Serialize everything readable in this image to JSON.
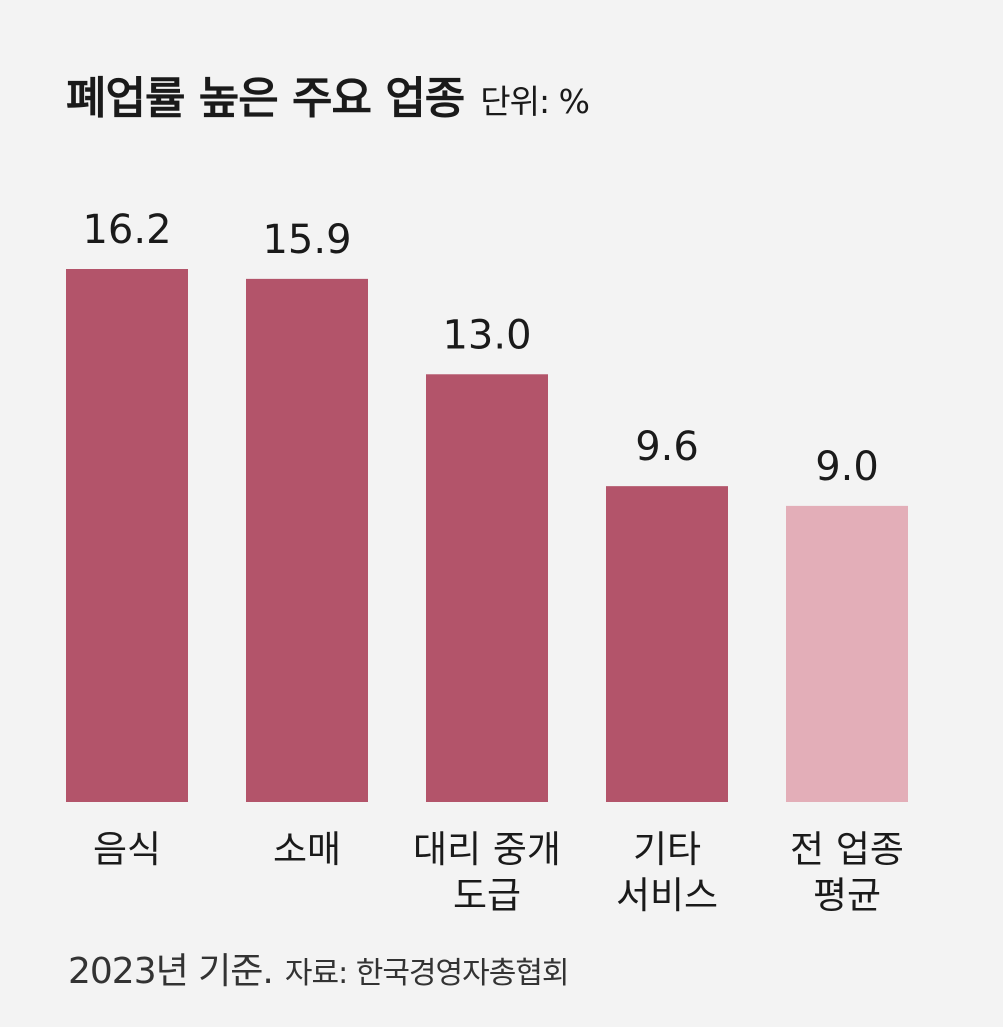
{
  "header": {
    "title": "폐업률 높은 주요 업종",
    "unit": "단위: %"
  },
  "chart_data": {
    "type": "bar",
    "categories": [
      [
        "음식"
      ],
      [
        "소매"
      ],
      [
        "대리 중개",
        "도급"
      ],
      [
        "기타",
        "서비스"
      ],
      [
        "전 업종",
        "평균"
      ]
    ],
    "values": [
      16.2,
      15.9,
      13.0,
      9.6,
      9.0
    ],
    "value_labels": [
      "16.2",
      "15.9",
      "13.0",
      "9.6",
      "9.0"
    ],
    "title": "폐업률 높은 주요 업종",
    "ylabel": "단위: %",
    "ylim": [
      0,
      16.2
    ],
    "grid": false,
    "colors": [
      "#b3546a",
      "#b3546a",
      "#b3546a",
      "#b3546a",
      "#e3aeb8"
    ]
  },
  "footer": {
    "basis": "2023년 기준.",
    "source": "자료: 한국경영자총협회"
  }
}
